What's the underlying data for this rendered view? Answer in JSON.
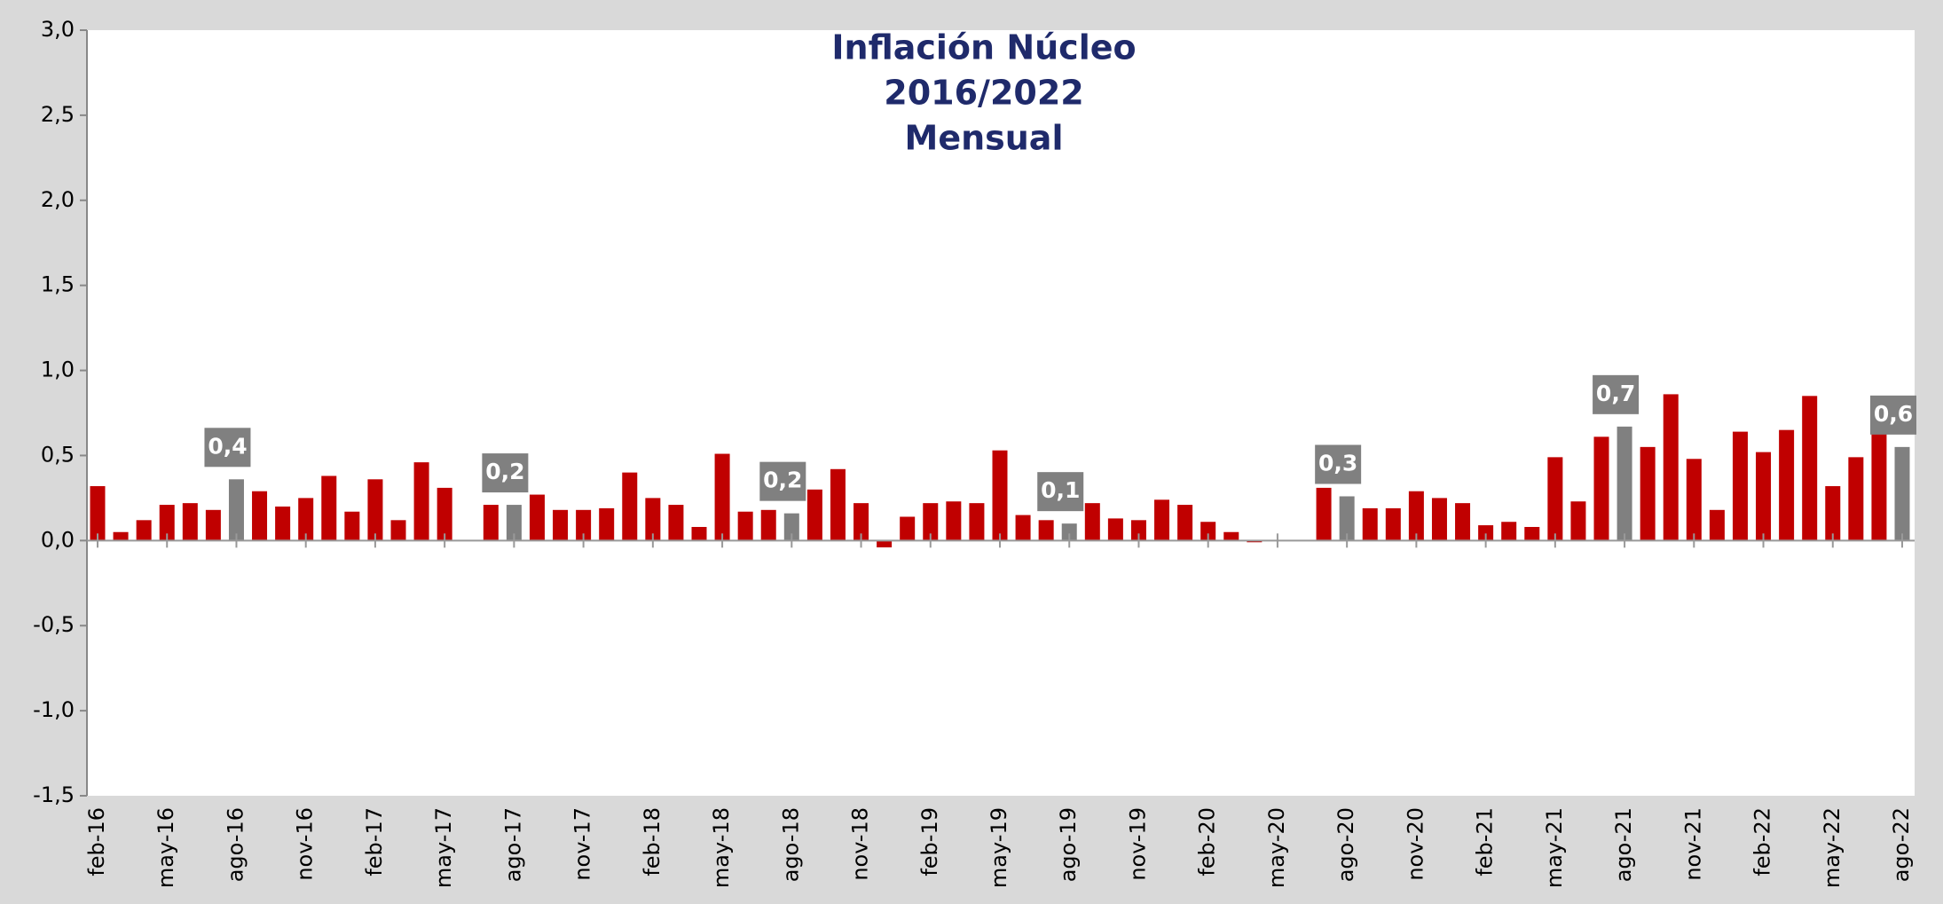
{
  "chart_data": {
    "type": "bar",
    "title_lines": [
      "Inflación Núcleo",
      "2016/2022",
      "Mensual"
    ],
    "categories": [
      "feb-16",
      null,
      null,
      "may-16",
      null,
      null,
      "ago-16",
      null,
      null,
      "nov-16",
      null,
      null,
      "feb-17",
      null,
      null,
      "may-17",
      null,
      null,
      "ago-17",
      null,
      null,
      "nov-17",
      null,
      null,
      "feb-18",
      null,
      null,
      "may-18",
      null,
      null,
      "ago-18",
      null,
      null,
      "nov-18",
      null,
      null,
      "feb-19",
      null,
      null,
      "may-19",
      null,
      null,
      "ago-19",
      null,
      null,
      "nov-19",
      null,
      null,
      "feb-20",
      null,
      null,
      "may-20",
      null,
      null,
      "ago-20",
      null,
      null,
      "nov-20",
      null,
      null,
      "feb-21",
      null,
      null,
      "may-21",
      null,
      null,
      "ago-21",
      null,
      null,
      "nov-21",
      null,
      null,
      "feb-22",
      null,
      null,
      "may-22",
      null,
      null,
      "ago-22"
    ],
    "values": [
      0.32,
      0.05,
      0.12,
      0.21,
      0.22,
      0.18,
      0.36,
      0.29,
      0.2,
      0.25,
      0.38,
      0.17,
      0.36,
      0.12,
      0.46,
      0.31,
      0,
      0.21,
      0.21,
      0.27,
      0.18,
      0.18,
      0.19,
      0.4,
      0.25,
      0.21,
      0.08,
      0.51,
      0.17,
      0.18,
      0.16,
      0.3,
      0.42,
      0.22,
      -0.04,
      0.14,
      0.22,
      0.23,
      0.22,
      0.53,
      0.15,
      0.12,
      0.1,
      0.22,
      0.13,
      0.12,
      0.24,
      0.21,
      0.11,
      0.05,
      -0.01,
      0,
      0,
      0.31,
      0.26,
      0.19,
      0.19,
      0.29,
      0.25,
      0.22,
      0.09,
      0.11,
      0.08,
      0.49,
      0.23,
      0.61,
      0.67,
      0.55,
      0.86,
      0.48,
      0.18,
      0.64,
      0.52,
      0.65,
      0.85,
      0.32,
      0.49,
      0.63,
      0.55
    ],
    "value_labels": [
      null,
      null,
      null,
      null,
      null,
      null,
      "0,4",
      null,
      null,
      null,
      null,
      null,
      null,
      null,
      null,
      null,
      null,
      null,
      "0,2",
      null,
      null,
      null,
      null,
      null,
      null,
      null,
      null,
      null,
      null,
      null,
      "0,2",
      null,
      null,
      null,
      null,
      null,
      null,
      null,
      null,
      null,
      null,
      null,
      "0,1",
      null,
      null,
      null,
      null,
      null,
      null,
      null,
      null,
      null,
      null,
      null,
      "0,3",
      null,
      null,
      null,
      null,
      null,
      null,
      null,
      null,
      null,
      null,
      null,
      "0,7",
      null,
      null,
      null,
      null,
      null,
      null,
      null,
      null,
      null,
      null,
      null,
      "0,6"
    ],
    "color": "#c00000",
    "label_color": "#808080",
    "ylim": [
      -1.5,
      3.0
    ],
    "yticks": [
      {
        "value": -1.5,
        "label": "-1,5"
      },
      {
        "value": -1,
        "label": "-1,0"
      },
      {
        "value": -0.5,
        "label": "-0,5"
      },
      {
        "value": 0,
        "label": "0,0"
      },
      {
        "value": 0.5,
        "label": "0,5"
      },
      {
        "value": 1,
        "label": "1,0"
      },
      {
        "value": 1.5,
        "label": "1,5"
      },
      {
        "value": 2,
        "label": "2,0"
      },
      {
        "value": 2.5,
        "label": "2,5"
      },
      {
        "value": 3,
        "label": "3,0"
      }
    ]
  }
}
